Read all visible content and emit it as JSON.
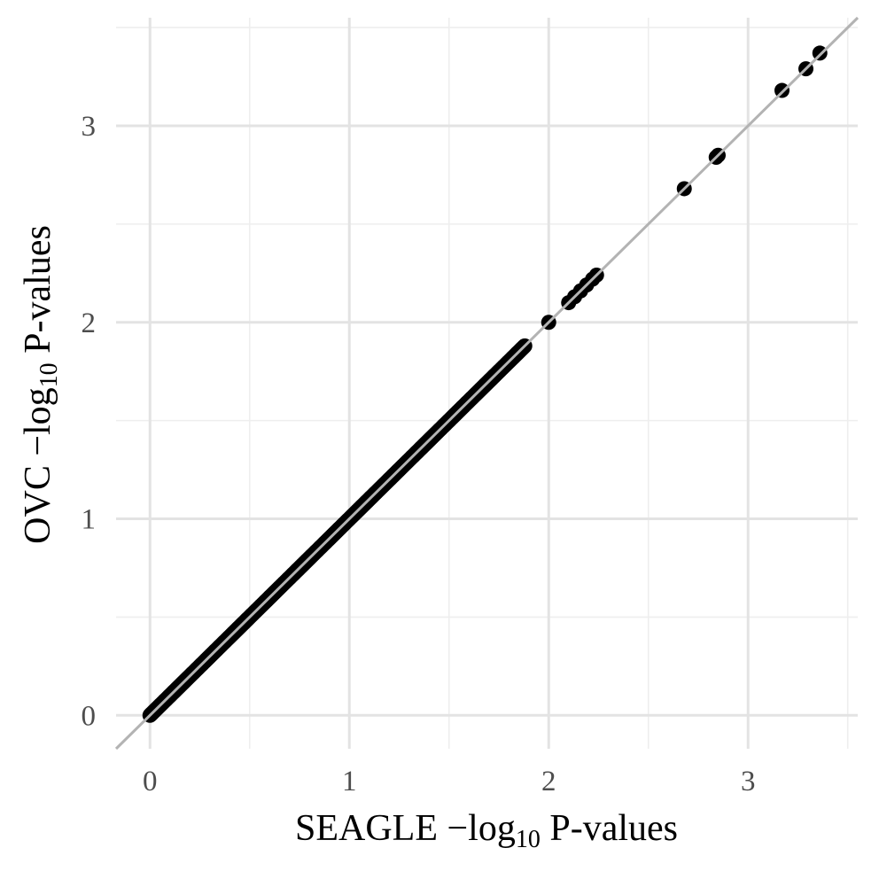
{
  "chart_data": {
    "type": "scatter",
    "title": "",
    "xlabel": {
      "prefix": "SEAGLE −log",
      "subscript": "10",
      "suffix": " P-values"
    },
    "ylabel": {
      "prefix": "OVC −log",
      "subscript": "10",
      "suffix": " P-values"
    },
    "xlim": [
      -0.17,
      3.55
    ],
    "ylim": [
      -0.17,
      3.55
    ],
    "x_ticks": [
      0,
      1,
      2,
      3
    ],
    "y_ticks": [
      0,
      1,
      2,
      3
    ],
    "x_tick_labels": [
      "0",
      "1",
      "2",
      "3"
    ],
    "y_tick_labels": [
      "0",
      "1",
      "2",
      "3"
    ],
    "grid": true,
    "legend": "none",
    "reference_line": {
      "type": "identity",
      "slope": 1,
      "intercept": 0
    },
    "series": [
      {
        "dense_run": {
          "from": 0.0,
          "to": 1.88,
          "step": 0.0025
        },
        "points": [
          {
            "x": 2.0,
            "y": 2.0
          },
          {
            "x": 2.1,
            "y": 2.1
          },
          {
            "x": 2.13,
            "y": 2.13
          },
          {
            "x": 2.16,
            "y": 2.16
          },
          {
            "x": 2.19,
            "y": 2.19
          },
          {
            "x": 2.22,
            "y": 2.22
          },
          {
            "x": 2.24,
            "y": 2.24
          },
          {
            "x": 2.68,
            "y": 2.68
          },
          {
            "x": 2.84,
            "y": 2.84
          },
          {
            "x": 2.85,
            "y": 2.85
          },
          {
            "x": 3.17,
            "y": 3.18
          },
          {
            "x": 3.29,
            "y": 3.29
          },
          {
            "x": 3.36,
            "y": 3.37
          }
        ]
      }
    ],
    "colors": {
      "points": "#000000",
      "reference_line": "#b3b3b3",
      "grid_major": "#e3e3e3",
      "grid_minor": "#eeeeee"
    }
  }
}
